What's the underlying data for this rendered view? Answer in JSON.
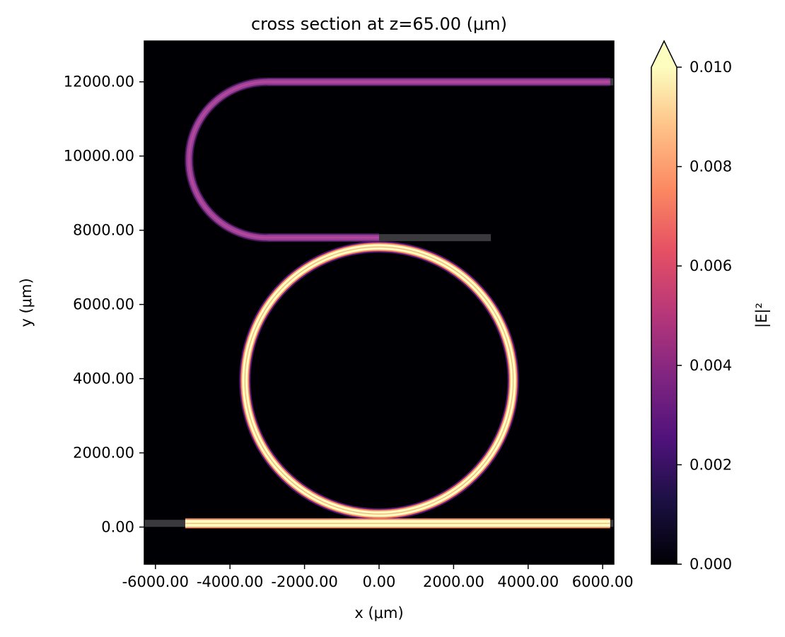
{
  "chart_data": {
    "type": "heatmap",
    "title": "cross section at z=65.00 (μm)",
    "xlabel": "x (μm)",
    "ylabel": "y (μm)",
    "xlim": [
      -6300,
      6300
    ],
    "ylim": [
      -1000,
      13100
    ],
    "x_ticks": [
      {
        "value": -6000,
        "label": "-6000.00"
      },
      {
        "value": -4000,
        "label": "-4000.00"
      },
      {
        "value": -2000,
        "label": "-2000.00"
      },
      {
        "value": 0,
        "label": "0.00"
      },
      {
        "value": 2000,
        "label": "2000.00"
      },
      {
        "value": 4000,
        "label": "4000.00"
      },
      {
        "value": 6000,
        "label": "6000.00"
      }
    ],
    "y_ticks": [
      {
        "value": 0,
        "label": "0.00"
      },
      {
        "value": 2000,
        "label": "2000.00"
      },
      {
        "value": 4000,
        "label": "4000.00"
      },
      {
        "value": 6000,
        "label": "6000.00"
      },
      {
        "value": 8000,
        "label": "8000.00"
      },
      {
        "value": 10000,
        "label": "10000.00"
      },
      {
        "value": 12000,
        "label": "12000.00"
      }
    ],
    "colorbar": {
      "label": "|E|²",
      "colormap": "magma",
      "range": [
        0,
        0.01
      ],
      "extend": "max",
      "ticks": [
        {
          "value": 0.0,
          "label": "0.000"
        },
        {
          "value": 0.002,
          "label": "0.002"
        },
        {
          "value": 0.004,
          "label": "0.004"
        },
        {
          "value": 0.006,
          "label": "0.006"
        },
        {
          "value": 0.008,
          "label": "0.008"
        },
        {
          "value": 0.01,
          "label": "0.010"
        }
      ]
    },
    "grid": false,
    "structures": {
      "bus_waveguide": {
        "y": 100,
        "x_start": -6300,
        "x_end": 6300,
        "field_x_start": -5200,
        "field_x_end": 6200,
        "intensity": 0.01
      },
      "ring": {
        "center": [
          0,
          3950
        ],
        "radius": 3600,
        "intensity": 0.01
      },
      "drop_waveguide_straight": {
        "y": 7800,
        "x_start": -3000,
        "x_end": 3000,
        "field_x_end": 0,
        "intensity": 0.0045
      },
      "drop_bend": {
        "center": [
          -3000,
          9900
        ],
        "radius": 2100,
        "intensity": 0.0045
      },
      "drop_waveguide_top": {
        "y": 12000,
        "x_start": -3000,
        "x_end": 6300,
        "field_x_end": 6200,
        "intensity": 0.0045
      }
    },
    "colors": {
      "background": "#000004",
      "high_intensity": "#fcfdbf",
      "ring_edge": "#fb8761",
      "medium_intensity": "#9a3d96",
      "waveguide_gray": "#3a3a3e"
    }
  }
}
